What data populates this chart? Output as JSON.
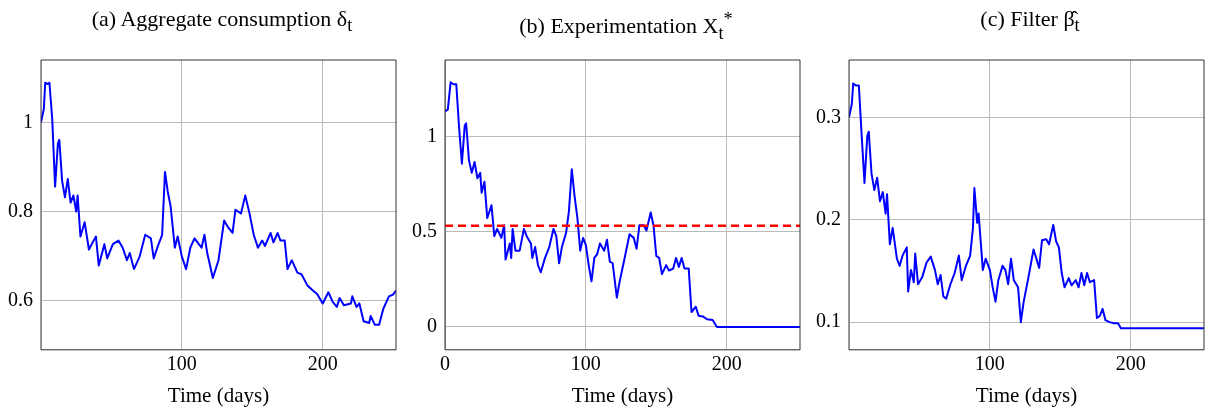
{
  "chart_data": [
    {
      "type": "line",
      "title": "(a) Aggregate consumption δ$_{t}$",
      "xlabel": "Time (days)",
      "xlim": [
        0,
        252
      ],
      "xticks": [
        100,
        200
      ],
      "ylim": [
        0.49,
        1.14
      ],
      "yticks": [
        0.6,
        0.8,
        1
      ],
      "grid": true,
      "marker": "none",
      "line_style": "solid",
      "series": [
        {
          "color": "#0000ff",
          "x": [
            0,
            2,
            3,
            5,
            6,
            8,
            10,
            12,
            13,
            15,
            17,
            19,
            21,
            23,
            25,
            26,
            28,
            31,
            34,
            36,
            39,
            41,
            45,
            47,
            51,
            55,
            58,
            61,
            63,
            66,
            70,
            74,
            78,
            80,
            83,
            86,
            88,
            90,
            92,
            95,
            97,
            100,
            103,
            106,
            109,
            112,
            114,
            116,
            118,
            122,
            126,
            130,
            133,
            136,
            138,
            142,
            145,
            148,
            151,
            154,
            157,
            159,
            163,
            165,
            168,
            170,
            173,
            175,
            178,
            182,
            185,
            189,
            193,
            196,
            200,
            204,
            207,
            210,
            212,
            215,
            220,
            221,
            224,
            226,
            229,
            233,
            234,
            237,
            240,
            243,
            247,
            250,
            252
          ],
          "values": [
            1.0,
            1.03,
            1.089,
            1.086,
            1.089,
            1.006,
            0.856,
            0.953,
            0.961,
            0.869,
            0.832,
            0.873,
            0.82,
            0.836,
            0.8,
            0.836,
            0.744,
            0.776,
            0.715,
            0.727,
            0.744,
            0.679,
            0.727,
            0.695,
            0.727,
            0.735,
            0.719,
            0.691,
            0.707,
            0.671,
            0.699,
            0.748,
            0.74,
            0.695,
            0.723,
            0.748,
            0.889,
            0.844,
            0.812,
            0.719,
            0.744,
            0.699,
            0.671,
            0.719,
            0.74,
            0.727,
            0.719,
            0.748,
            0.707,
            0.651,
            0.691,
            0.78,
            0.764,
            0.752,
            0.804,
            0.796,
            0.836,
            0.796,
            0.748,
            0.719,
            0.735,
            0.723,
            0.752,
            0.731,
            0.752,
            0.735,
            0.735,
            0.671,
            0.691,
            0.663,
            0.659,
            0.635,
            0.623,
            0.615,
            0.594,
            0.619,
            0.598,
            0.586,
            0.606,
            0.59,
            0.594,
            0.61,
            0.586,
            0.594,
            0.554,
            0.55,
            0.566,
            0.546,
            0.546,
            0.582,
            0.61,
            0.614,
            0.623
          ]
        }
      ]
    },
    {
      "type": "line",
      "title": "(b) Experimentation X$_{t}$$^{*}$",
      "xlabel": "Time (days)",
      "xlim": [
        0,
        252
      ],
      "xticks": [
        0,
        100,
        200
      ],
      "ylim": [
        -0.12,
        1.4
      ],
      "yticks": [
        0,
        0.5,
        1
      ],
      "grid": true,
      "marker": "none",
      "line_style": "solid",
      "ref_lines": [
        {
          "axis": "y",
          "value": 0.53,
          "color": "#ff0000",
          "line_style": "dashed"
        }
      ],
      "series": [
        {
          "color": "#0000ff",
          "x": [
            0,
            2,
            4,
            6,
            8,
            10,
            12,
            14,
            15,
            17,
            19,
            21,
            23,
            25,
            26,
            28,
            30,
            33,
            35,
            37,
            40,
            42,
            43,
            46,
            47,
            48,
            50,
            53,
            56,
            58,
            61,
            62,
            64,
            66,
            68,
            71,
            74,
            77,
            79,
            81,
            83,
            86,
            88,
            90,
            92,
            94,
            96,
            98,
            100,
            102,
            104,
            106,
            108,
            110,
            113,
            115,
            117,
            119,
            122,
            124,
            127,
            131,
            134,
            136,
            138,
            141,
            143,
            146,
            148,
            150,
            152,
            154,
            157,
            159,
            162,
            164,
            166,
            168,
            170,
            173,
            175,
            178,
            180,
            183,
            186,
            190,
            193,
            252
          ],
          "values": [
            1.131,
            1.14,
            1.283,
            1.273,
            1.273,
            1.046,
            0.856,
            1.055,
            1.068,
            0.875,
            0.808,
            0.865,
            0.78,
            0.808,
            0.704,
            0.761,
            0.571,
            0.638,
            0.476,
            0.514,
            0.467,
            0.533,
            0.353,
            0.438,
            0.362,
            0.514,
            0.4,
            0.4,
            0.514,
            0.476,
            0.438,
            0.362,
            0.419,
            0.324,
            0.287,
            0.362,
            0.419,
            0.514,
            0.476,
            0.334,
            0.419,
            0.495,
            0.609,
            0.827,
            0.685,
            0.571,
            0.4,
            0.467,
            0.429,
            0.324,
            0.239,
            0.362,
            0.381,
            0.438,
            0.4,
            0.457,
            0.343,
            0.334,
            0.154,
            0.239,
            0.343,
            0.486,
            0.467,
            0.41,
            0.533,
            0.533,
            0.505,
            0.6,
            0.533,
            0.372,
            0.362,
            0.277,
            0.324,
            0.296,
            0.306,
            0.362,
            0.315,
            0.362,
            0.306,
            0.306,
            0.078,
            0.106,
            0.059,
            0.055,
            0.04,
            0.036,
            0,
            0
          ]
        }
      ]
    },
    {
      "type": "line",
      "title": "(c) Filter β̂$_{t}$",
      "xlabel": "Time (days)",
      "xlim": [
        0,
        252
      ],
      "xticks": [
        100,
        200
      ],
      "ylim": [
        0.073,
        0.356
      ],
      "yticks": [
        0.1,
        0.2,
        0.3
      ],
      "grid": true,
      "marker": "none",
      "line_style": "solid",
      "series": [
        {
          "color": "#0000ff",
          "x": [
            0,
            2,
            3,
            5,
            7,
            9,
            11,
            13,
            14,
            16,
            18,
            20,
            22,
            24,
            26,
            27,
            29,
            31,
            34,
            36,
            38,
            41,
            42,
            44,
            46,
            47,
            49,
            52,
            55,
            58,
            61,
            63,
            65,
            67,
            69,
            72,
            75,
            78,
            80,
            83,
            86,
            88,
            89,
            91,
            92,
            95,
            97,
            100,
            102,
            104,
            106,
            109,
            111,
            113,
            115,
            117,
            120,
            122,
            124,
            127,
            131,
            133,
            135,
            137,
            140,
            142,
            145,
            147,
            149,
            151,
            153,
            156,
            158,
            161,
            163,
            165,
            167,
            169,
            171,
            174,
            176,
            178,
            180,
            182,
            185,
            188,
            191,
            193,
            252
          ],
          "values": [
            0.3,
            0.313,
            0.333,
            0.331,
            0.331,
            0.282,
            0.236,
            0.282,
            0.286,
            0.245,
            0.229,
            0.241,
            0.218,
            0.227,
            0.206,
            0.225,
            0.176,
            0.192,
            0.162,
            0.155,
            0.165,
            0.173,
            0.13,
            0.151,
            0.139,
            0.167,
            0.137,
            0.144,
            0.158,
            0.164,
            0.151,
            0.137,
            0.146,
            0.125,
            0.123,
            0.137,
            0.148,
            0.165,
            0.141,
            0.155,
            0.165,
            0.192,
            0.231,
            0.197,
            0.206,
            0.151,
            0.162,
            0.151,
            0.134,
            0.12,
            0.141,
            0.155,
            0.151,
            0.137,
            0.162,
            0.141,
            0.134,
            0.1,
            0.12,
            0.141,
            0.171,
            0.162,
            0.153,
            0.18,
            0.181,
            0.176,
            0.195,
            0.179,
            0.173,
            0.148,
            0.134,
            0.143,
            0.136,
            0.141,
            0.134,
            0.148,
            0.136,
            0.148,
            0.139,
            0.141,
            0.104,
            0.106,
            0.113,
            0.102,
            0.1,
            0.099,
            0.099,
            0.094,
            0.094
          ]
        }
      ]
    }
  ]
}
